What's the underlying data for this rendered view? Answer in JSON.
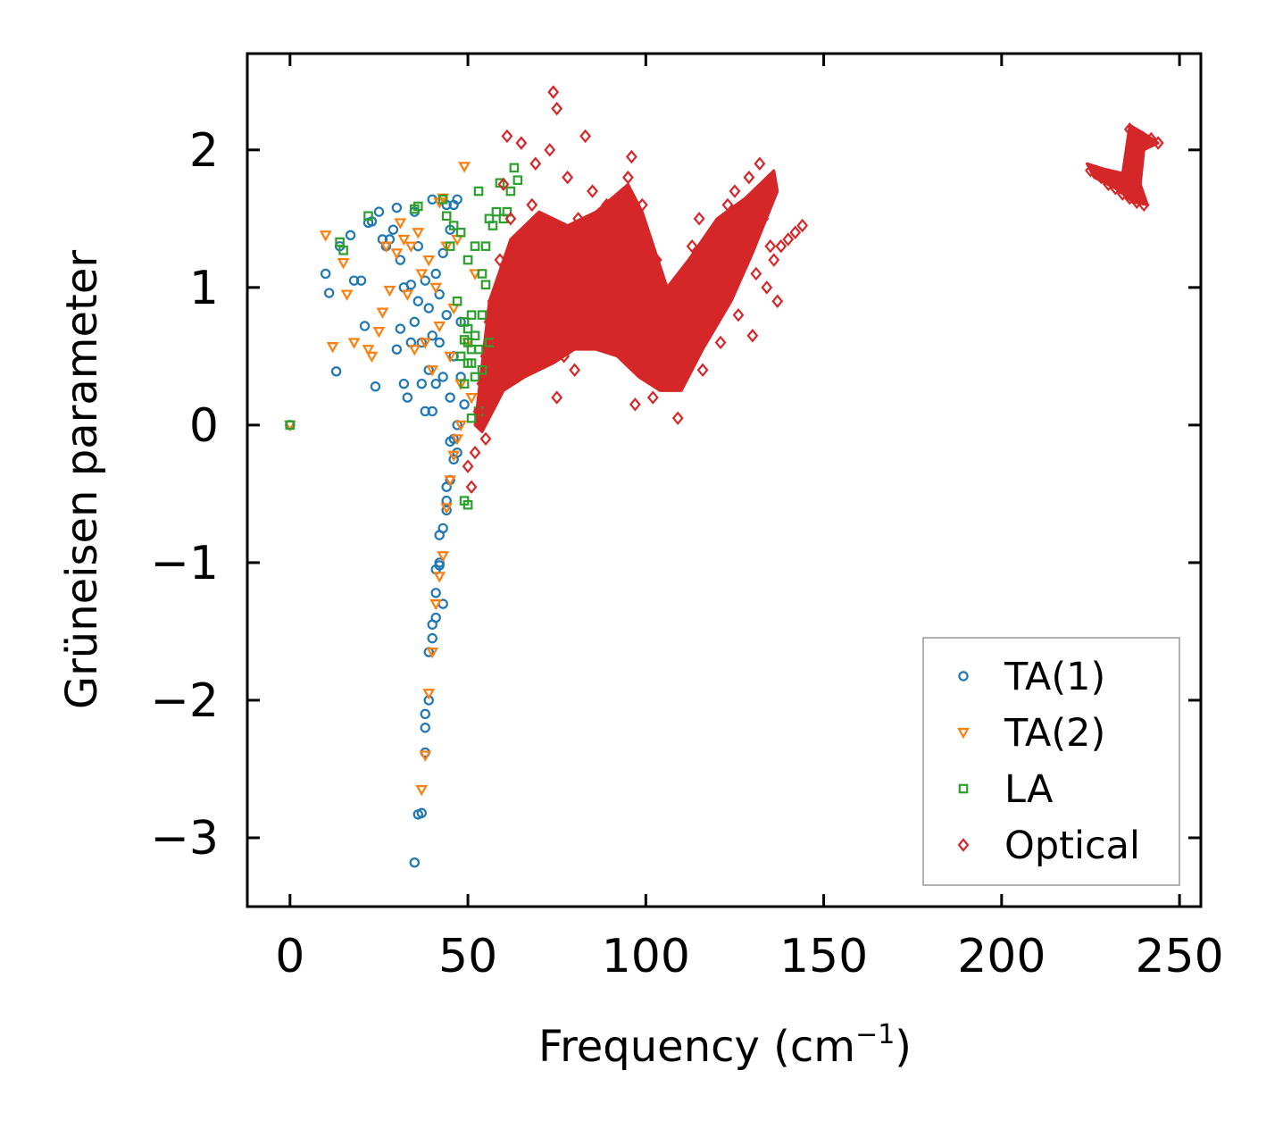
{
  "chart_data": {
    "type": "scatter",
    "title": "",
    "xlabel": "Frequency (cm",
    "xlabel_superscript": "−1",
    "xlabel_suffix": ")",
    "ylabel": "Grüneisen parameter",
    "xlim": [
      -12,
      256
    ],
    "ylim": [
      -3.5,
      2.7
    ],
    "x_ticks": [
      0,
      50,
      100,
      150,
      200,
      250
    ],
    "x_tick_labels": [
      "0",
      "50",
      "100",
      "150",
      "200",
      "250"
    ],
    "y_ticks": [
      2,
      1,
      0,
      -1,
      -2,
      -3
    ],
    "y_tick_labels": [
      "2",
      "1",
      "0",
      "−1",
      "−2",
      "−3"
    ],
    "grid": false,
    "legend_position": "bottom-right",
    "series": [
      {
        "name": "TA(1)",
        "marker": "circle",
        "color": "#1f77b4",
        "points": [
          [
            0,
            0
          ],
          [
            10,
            1.1
          ],
          [
            11,
            0.96
          ],
          [
            13,
            0.39
          ],
          [
            14,
            1.3
          ],
          [
            17,
            1.38
          ],
          [
            18,
            1.05
          ],
          [
            20,
            1.05
          ],
          [
            21,
            0.72
          ],
          [
            22,
            1.47
          ],
          [
            23,
            1.48
          ],
          [
            24,
            0.28
          ],
          [
            25,
            1.55
          ],
          [
            26,
            1.35
          ],
          [
            27,
            1.3
          ],
          [
            28,
            1.35
          ],
          [
            29,
            1.42
          ],
          [
            30,
            1.58
          ],
          [
            30,
            0.55
          ],
          [
            31,
            1.2
          ],
          [
            31,
            0.7
          ],
          [
            32,
            0.3
          ],
          [
            32,
            1.0
          ],
          [
            33,
            0.2
          ],
          [
            34,
            0.6
          ],
          [
            34,
            1.02
          ],
          [
            35,
            1.55
          ],
          [
            35,
            0.75
          ],
          [
            36,
            0.9
          ],
          [
            36,
            1.3
          ],
          [
            37,
            0.6
          ],
          [
            37,
            0.3
          ],
          [
            38,
            1.05
          ],
          [
            38,
            0.1
          ],
          [
            39,
            0.85
          ],
          [
            39,
            0.4
          ],
          [
            40,
            1.64
          ],
          [
            40,
            0.1
          ],
          [
            40,
            0.65
          ],
          [
            41,
            1.1
          ],
          [
            41,
            0.3
          ],
          [
            42,
            0.95
          ],
          [
            42,
            0.6
          ],
          [
            43,
            1.25
          ],
          [
            43,
            0.35
          ],
          [
            44,
            1.6
          ],
          [
            44,
            0.8
          ],
          [
            45,
            0.2
          ],
          [
            45,
            1.42
          ],
          [
            46,
            0.5
          ],
          [
            46,
            1.6
          ],
          [
            47,
            0.0
          ],
          [
            47,
            1.64
          ],
          [
            48,
            0.35
          ],
          [
            48,
            0.75
          ],
          [
            49,
            0.15
          ],
          [
            45,
            -0.12
          ],
          [
            46,
            -0.25
          ],
          [
            45,
            -0.4
          ],
          [
            44,
            -0.55
          ],
          [
            44,
            -0.62
          ],
          [
            43,
            -0.75
          ],
          [
            42,
            -0.8
          ],
          [
            42,
            -1.0
          ],
          [
            41,
            -1.05
          ],
          [
            41,
            -1.22
          ],
          [
            41,
            -1.4
          ],
          [
            40,
            -1.45
          ],
          [
            40,
            -1.55
          ],
          [
            39,
            -1.65
          ],
          [
            39,
            -2.0
          ],
          [
            38,
            -2.1
          ],
          [
            38,
            -2.2
          ],
          [
            38,
            -2.38
          ],
          [
            37,
            -2.82
          ],
          [
            36,
            -2.83
          ],
          [
            35,
            -3.18
          ],
          [
            43,
            -1.3
          ],
          [
            42,
            -1.02
          ],
          [
            44,
            -0.45
          ],
          [
            46,
            -0.1
          ],
          [
            47,
            -0.2
          ]
        ]
      },
      {
        "name": "TA(2)",
        "marker": "triangle-down",
        "color": "#ff7f0e",
        "points": [
          [
            0,
            0
          ],
          [
            10,
            1.38
          ],
          [
            12,
            0.57
          ],
          [
            15,
            1.18
          ],
          [
            16,
            0.95
          ],
          [
            18,
            0.6
          ],
          [
            22,
            0.55
          ],
          [
            23,
            0.5
          ],
          [
            25,
            0.68
          ],
          [
            26,
            0.82
          ],
          [
            27,
            1.3
          ],
          [
            28,
            0.98
          ],
          [
            30,
            1.25
          ],
          [
            31,
            1.47
          ],
          [
            32,
            1.35
          ],
          [
            33,
            0.95
          ],
          [
            34,
            1.3
          ],
          [
            35,
            0.55
          ],
          [
            36,
            1.4
          ],
          [
            37,
            1.1
          ],
          [
            38,
            0.6
          ],
          [
            39,
            1.2
          ],
          [
            40,
            0.4
          ],
          [
            41,
            1.0
          ],
          [
            42,
            0.72
          ],
          [
            42,
            1.62
          ],
          [
            43,
            1.65
          ],
          [
            44,
            1.3
          ],
          [
            45,
            0.5
          ],
          [
            46,
            0.85
          ],
          [
            47,
            1.35
          ],
          [
            48,
            0.3
          ],
          [
            49,
            1.88
          ],
          [
            50,
            0.6
          ],
          [
            51,
            0.2
          ],
          [
            52,
            1.1
          ],
          [
            48,
            0.0
          ],
          [
            47,
            -0.1
          ],
          [
            46,
            -0.22
          ],
          [
            45,
            -0.4
          ],
          [
            44,
            -0.6
          ],
          [
            43,
            -0.95
          ],
          [
            42,
            -1.1
          ],
          [
            41,
            -1.3
          ],
          [
            40,
            -1.65
          ],
          [
            39,
            -1.95
          ],
          [
            38,
            -2.4
          ],
          [
            37,
            -2.65
          ]
        ]
      },
      {
        "name": "LA",
        "marker": "square",
        "color": "#2ca02c",
        "points": [
          [
            0,
            0
          ],
          [
            14,
            1.33
          ],
          [
            15,
            1.27
          ],
          [
            22,
            1.52
          ],
          [
            35,
            1.57
          ],
          [
            36,
            1.59
          ],
          [
            43,
            1.64
          ],
          [
            44,
            1.52
          ],
          [
            45,
            1.3
          ],
          [
            46,
            1.45
          ],
          [
            47,
            0.9
          ],
          [
            48,
            1.4
          ],
          [
            49,
            0.75
          ],
          [
            50,
            0.6
          ],
          [
            50,
            1.2
          ],
          [
            51,
            0.45
          ],
          [
            52,
            0.65
          ],
          [
            52,
            1.3
          ],
          [
            53,
            0.1
          ],
          [
            53,
            1.7
          ],
          [
            54,
            0.8
          ],
          [
            54,
            1.1
          ],
          [
            55,
            1.3
          ],
          [
            55,
            1.02
          ],
          [
            56,
            1.5
          ],
          [
            56,
            0.6
          ],
          [
            57,
            1.45
          ],
          [
            58,
            1.55
          ],
          [
            59,
            1.76
          ],
          [
            60,
            1.5
          ],
          [
            61,
            1.55
          ],
          [
            62,
            1.7
          ],
          [
            63,
            1.87
          ],
          [
            64,
            1.78
          ],
          [
            49,
            0.3
          ],
          [
            50,
            0.45
          ],
          [
            51,
            0.55
          ],
          [
            52,
            0.35
          ],
          [
            48,
            0.5
          ],
          [
            49,
            0.62
          ],
          [
            50,
            0.7
          ],
          [
            51,
            0.8
          ],
          [
            53,
            0.55
          ],
          [
            54,
            0.4
          ],
          [
            50,
            -0.58
          ],
          [
            49,
            -0.55
          ],
          [
            51,
            0.05
          ]
        ]
      },
      {
        "name": "Optical",
        "marker": "diamond",
        "color": "#d62728",
        "points": [
          [
            50,
            -0.3
          ],
          [
            51,
            -0.45
          ],
          [
            52,
            -0.2
          ],
          [
            53,
            0.1
          ],
          [
            54,
            0.3
          ],
          [
            55,
            0.5
          ],
          [
            55,
            -0.1
          ],
          [
            56,
            0.75
          ],
          [
            57,
            0.9
          ],
          [
            58,
            0.6
          ],
          [
            59,
            1.2
          ],
          [
            60,
            0.9
          ],
          [
            60,
            1.75
          ],
          [
            61,
            2.1
          ],
          [
            62,
            1.5
          ],
          [
            63,
            1.1
          ],
          [
            64,
            0.8
          ],
          [
            65,
            2.05
          ],
          [
            66,
            1.3
          ],
          [
            67,
            0.95
          ],
          [
            68,
            1.6
          ],
          [
            69,
            1.9
          ],
          [
            70,
            0.7
          ],
          [
            71,
            1.4
          ],
          [
            72,
            1.1
          ],
          [
            73,
            2.0
          ],
          [
            74,
            2.42
          ],
          [
            75,
            2.3
          ],
          [
            75,
            0.2
          ],
          [
            76,
            1.2
          ],
          [
            77,
            0.5
          ],
          [
            78,
            1.8
          ],
          [
            79,
            1.0
          ],
          [
            80,
            0.4
          ],
          [
            81,
            1.5
          ],
          [
            82,
            1.1
          ],
          [
            83,
            2.1
          ],
          [
            84,
            0.8
          ],
          [
            85,
            1.7
          ],
          [
            86,
            1.3
          ],
          [
            87,
            1.0
          ],
          [
            88,
            0.7
          ],
          [
            89,
            1.6
          ],
          [
            90,
            1.2
          ],
          [
            91,
            1.4
          ],
          [
            92,
            0.6
          ],
          [
            93,
            1.1
          ],
          [
            94,
            1.5
          ],
          [
            95,
            1.8
          ],
          [
            96,
            1.95
          ],
          [
            97,
            0.15
          ],
          [
            98,
            1.3
          ],
          [
            99,
            1.6
          ],
          [
            100,
            0.9
          ],
          [
            101,
            0.4
          ],
          [
            102,
            0.2
          ],
          [
            103,
            1.2
          ],
          [
            104,
            1.0
          ],
          [
            105,
            0.8
          ],
          [
            106,
            0.6
          ],
          [
            107,
            0.3
          ],
          [
            108,
            0.9
          ],
          [
            109,
            0.05
          ],
          [
            110,
            0.5
          ],
          [
            111,
            0.7
          ],
          [
            112,
            1.0
          ],
          [
            113,
            1.3
          ],
          [
            114,
            0.9
          ],
          [
            115,
            1.5
          ],
          [
            116,
            0.4
          ],
          [
            117,
            1.2
          ],
          [
            118,
            0.8
          ],
          [
            119,
            1.4
          ],
          [
            120,
            1.1
          ],
          [
            121,
            0.6
          ],
          [
            122,
            1.3
          ],
          [
            123,
            1.6
          ],
          [
            124,
            1.0
          ],
          [
            125,
            1.7
          ],
          [
            126,
            0.8
          ],
          [
            127,
            1.4
          ],
          [
            128,
            1.2
          ],
          [
            129,
            1.8
          ],
          [
            130,
            0.65
          ],
          [
            131,
            1.1
          ],
          [
            132,
            1.9
          ],
          [
            133,
            1.5
          ],
          [
            134,
            1.0
          ],
          [
            135,
            1.3
          ],
          [
            136,
            1.2
          ],
          [
            137,
            0.9
          ],
          [
            138,
            1.3
          ],
          [
            140,
            1.35
          ],
          [
            142,
            1.4
          ],
          [
            144,
            1.45
          ],
          [
            225,
            1.85
          ],
          [
            228,
            1.8
          ],
          [
            230,
            1.75
          ],
          [
            232,
            1.72
          ],
          [
            234,
            1.68
          ],
          [
            236,
            1.65
          ],
          [
            238,
            1.62
          ],
          [
            240,
            1.6
          ],
          [
            236,
            2.15
          ],
          [
            238,
            2.1
          ],
          [
            240,
            2.05
          ],
          [
            242,
            2.08
          ],
          [
            244,
            2.05
          ],
          [
            238,
            1.9
          ],
          [
            239,
            2.0
          ]
        ]
      }
    ]
  }
}
